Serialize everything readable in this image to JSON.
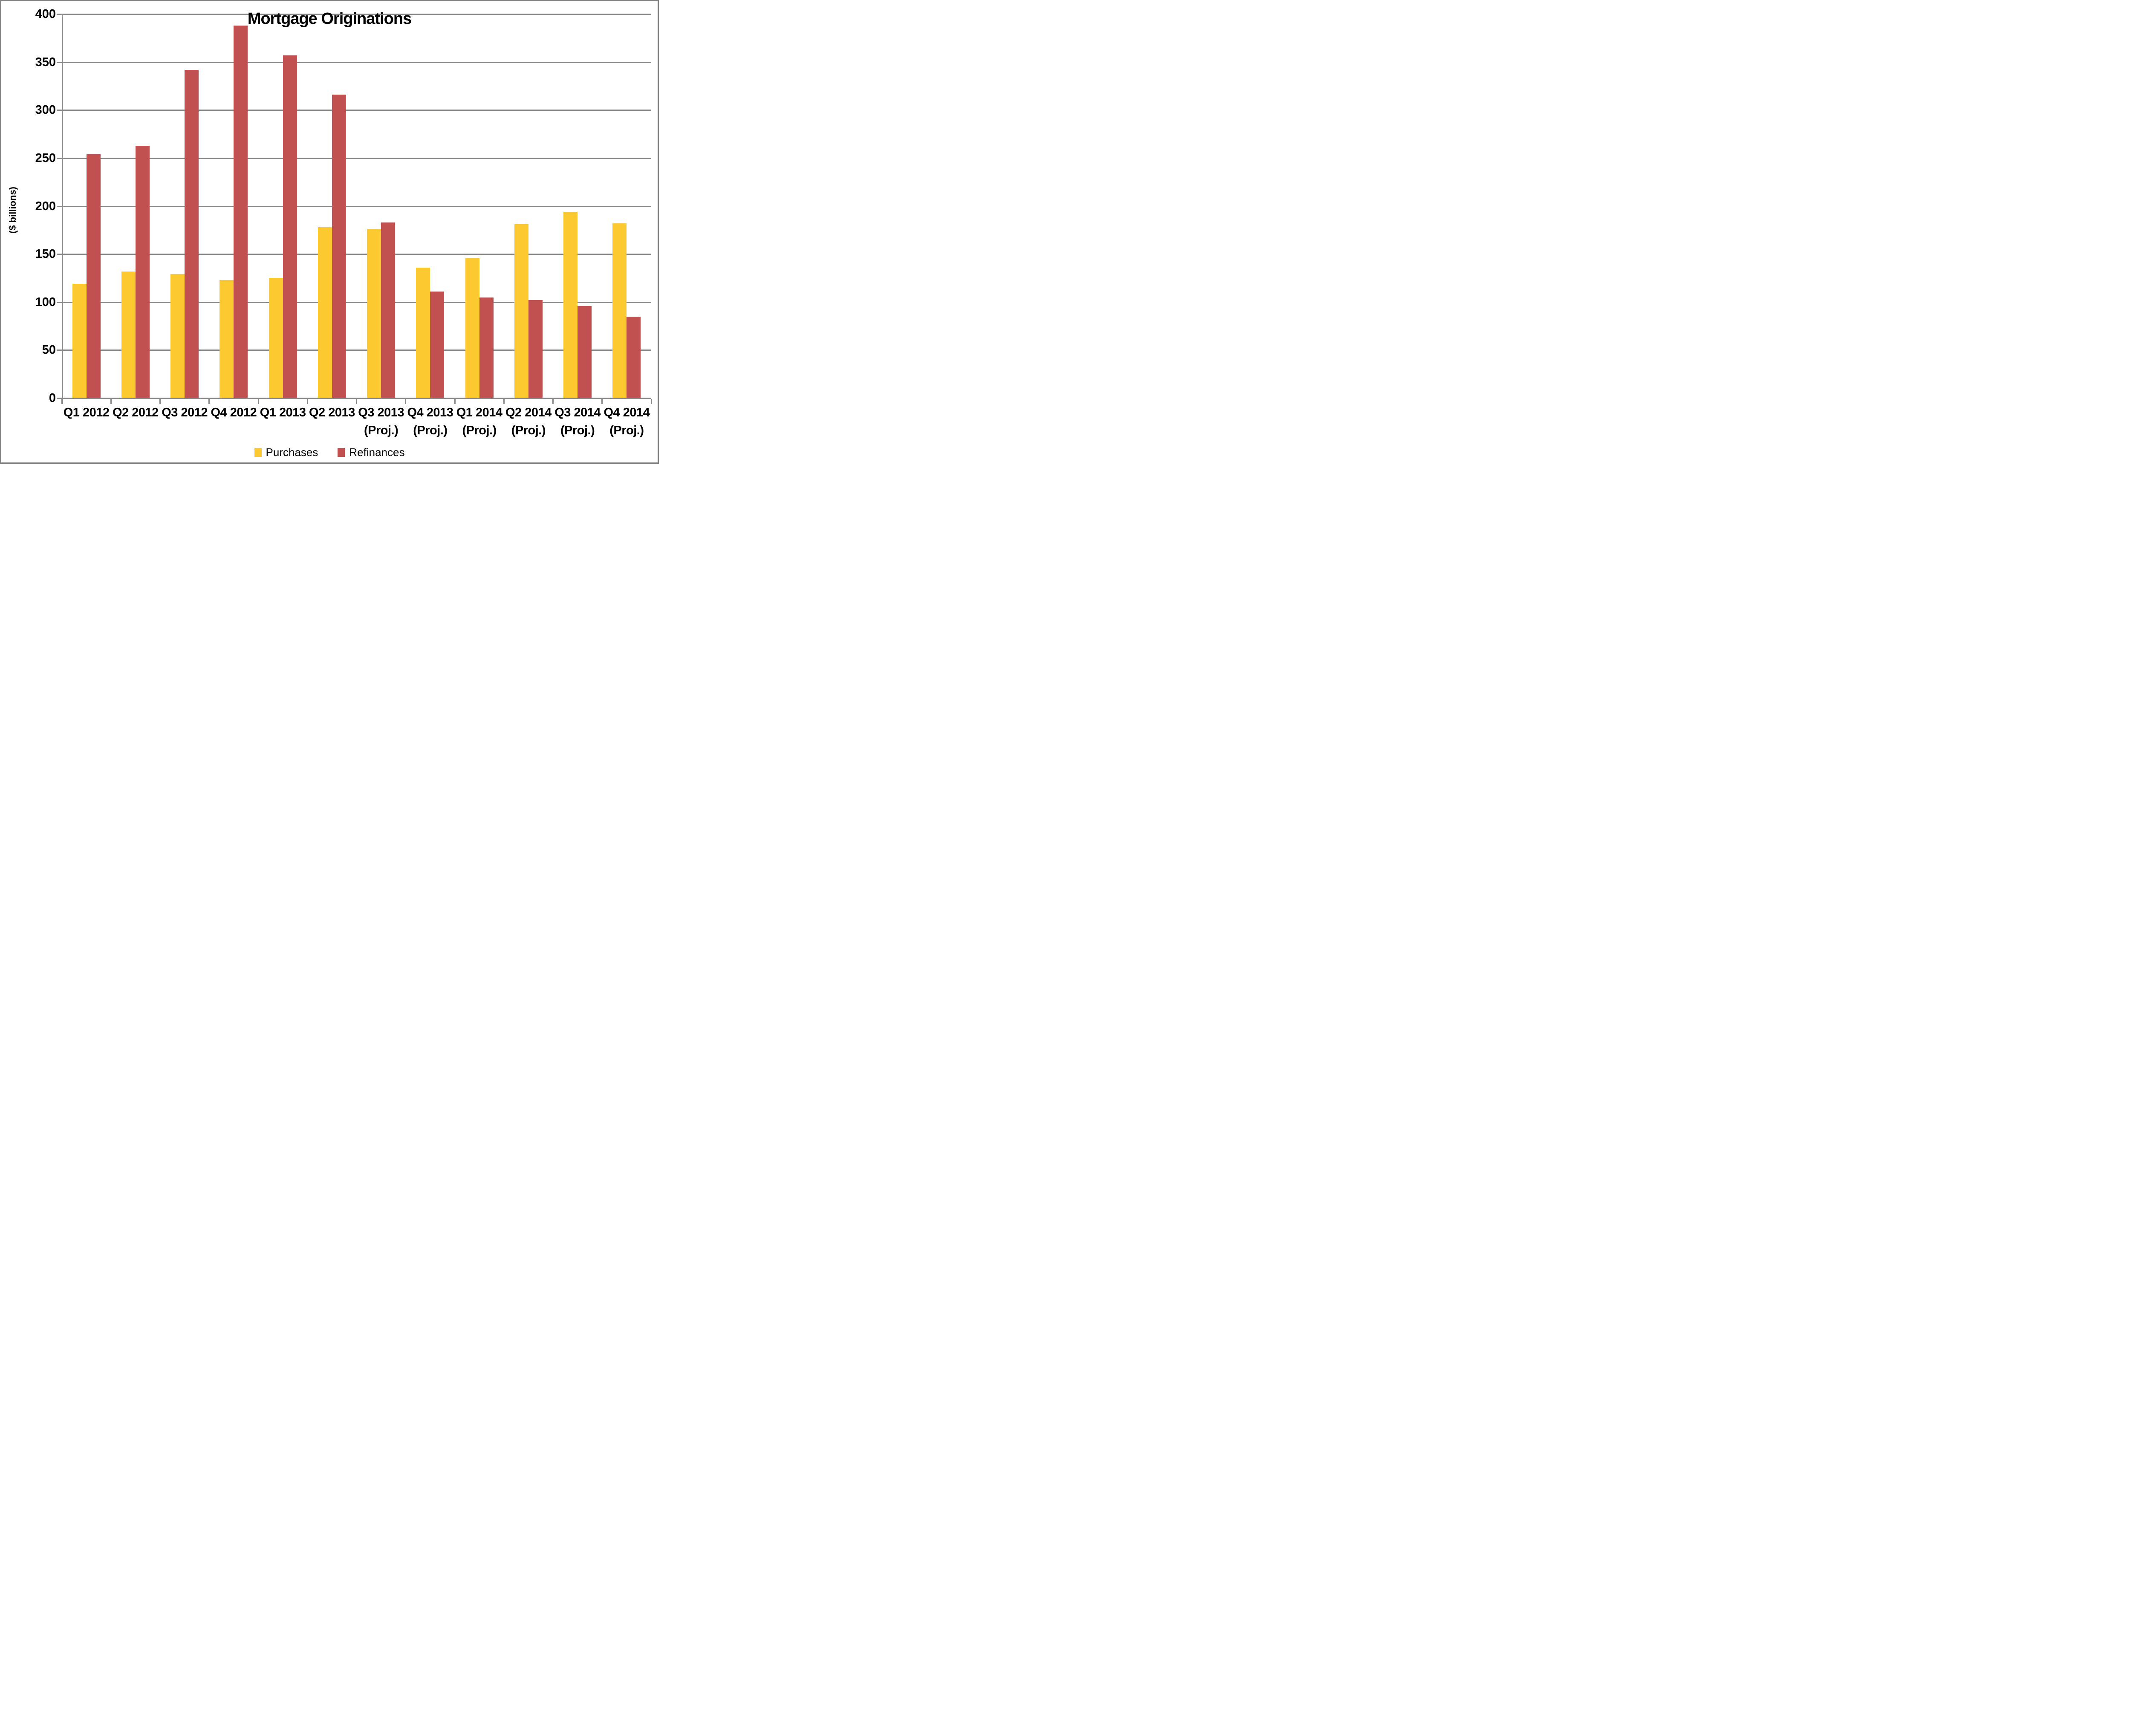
{
  "title": "Mortgage Originations",
  "y_axis": {
    "label": "($ billions)"
  },
  "legend": {
    "items": [
      {
        "label": "Purchases",
        "color": "#FDC931"
      },
      {
        "label": "Refinances",
        "color": "#C15150"
      }
    ],
    "position": "bottom-center"
  },
  "colors": {
    "purchases": "#FDC931",
    "refinances": "#C15150",
    "gridline": "#888888",
    "frame": "#808080",
    "text": "#000000",
    "background": "#FFFFFF"
  },
  "chart_data": {
    "type": "bar",
    "title": "Mortgage Originations",
    "xlabel": "",
    "ylabel": "($ billions)",
    "ylim": [
      0,
      400
    ],
    "ytick_step": 50,
    "yticks": [
      0,
      50,
      100,
      150,
      200,
      250,
      300,
      350,
      400
    ],
    "grid": true,
    "legend_position": "bottom",
    "categories": [
      "Q1 2012",
      "Q2 2012",
      "Q3 2012",
      "Q4 2012",
      "Q1 2013",
      "Q2 2013",
      "Q3 2013 (Proj.)",
      "Q4 2013 (Proj.)",
      "Q1 2014 (Proj.)",
      "Q2 2014 (Proj.)",
      "Q3 2014 (Proj.)",
      "Q4 2014 (Proj.)"
    ],
    "series": [
      {
        "name": "Purchases",
        "color": "#FDC931",
        "values": [
          119,
          132,
          129,
          123,
          125,
          178,
          176,
          136,
          146,
          181,
          194,
          182
        ]
      },
      {
        "name": "Refinances",
        "color": "#C15150",
        "values": [
          254,
          263,
          342,
          388,
          357,
          316,
          183,
          111,
          105,
          102,
          96,
          85
        ]
      }
    ]
  }
}
